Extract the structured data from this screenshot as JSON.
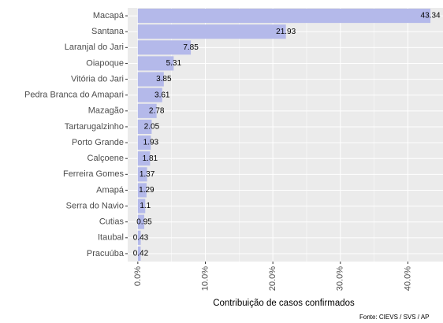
{
  "chart_data": {
    "type": "barh",
    "x_label": "Contribuição de casos confirmados",
    "caption": "Fonte: CIEVS / SVS / AP",
    "categories": [
      "Macapá",
      "Santana",
      "Laranjal do Jari",
      "Oiapoque",
      "Vitória do Jari",
      "Pedra Branca do Amapari",
      "Mazagão",
      "Tartarugalzinho",
      "Porto Grande",
      "Calçoene",
      "Ferreira Gomes",
      "Amapá",
      "Serra do Navio",
      "Cutias",
      "Itaubal",
      "Pracuúba"
    ],
    "values": [
      43.34,
      21.93,
      7.85,
      5.31,
      3.85,
      3.61,
      2.78,
      2.05,
      1.93,
      1.81,
      1.37,
      1.29,
      1.1,
      0.95,
      0.43,
      0.42
    ],
    "color": "#b4b9ea",
    "xlim": [
      -1.5,
      45.2
    ],
    "xticks": [
      {
        "value": 0,
        "label": "0.0%"
      },
      {
        "value": 10,
        "label": "10.0%"
      },
      {
        "value": 20,
        "label": "20.0%"
      },
      {
        "value": 30,
        "label": "30.0%"
      },
      {
        "value": 40,
        "label": "40.0%"
      }
    ],
    "minor_xticks": [
      5,
      15,
      25,
      35
    ],
    "grid": true
  }
}
